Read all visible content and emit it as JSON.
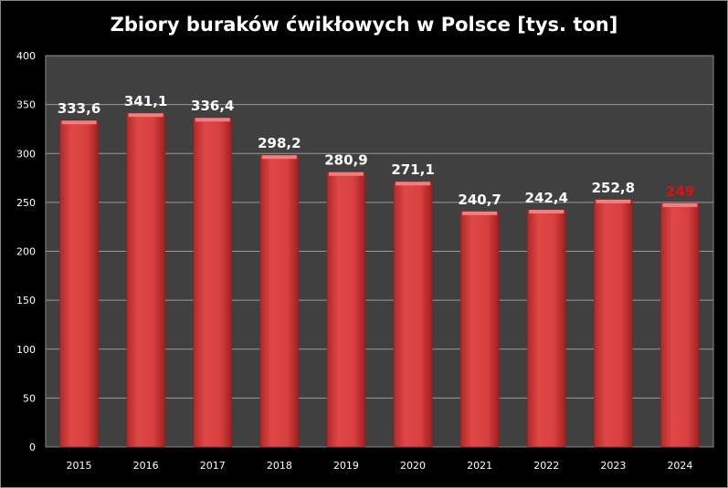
{
  "chart_data": {
    "type": "bar",
    "title": "Zbiory buraków ćwikłowych w Polsce [tys. ton]",
    "categories": [
      "2015",
      "2016",
      "2017",
      "2018",
      "2019",
      "2020",
      "2021",
      "2022",
      "2023",
      "2024"
    ],
    "values": [
      333.6,
      341.1,
      336.4,
      298.2,
      280.9,
      271.1,
      240.7,
      242.4,
      252.8,
      249
    ],
    "data_labels": [
      "333,6",
      "341,1",
      "336,4",
      "298,2",
      "280,9",
      "271,1",
      "240,7",
      "242,4",
      "252,8",
      "249"
    ],
    "label_colors": [
      "#ffffff",
      "#ffffff",
      "#ffffff",
      "#ffffff",
      "#ffffff",
      "#ffffff",
      "#ffffff",
      "#ffffff",
      "#ffffff",
      "#e01010"
    ],
    "ylim": [
      0,
      400
    ],
    "yticks": [
      0,
      50,
      100,
      150,
      200,
      250,
      300,
      350,
      400
    ],
    "grid": true,
    "xlabel": "",
    "ylabel": "",
    "bar_color": "#d94040",
    "plot_bg": "#404040"
  }
}
